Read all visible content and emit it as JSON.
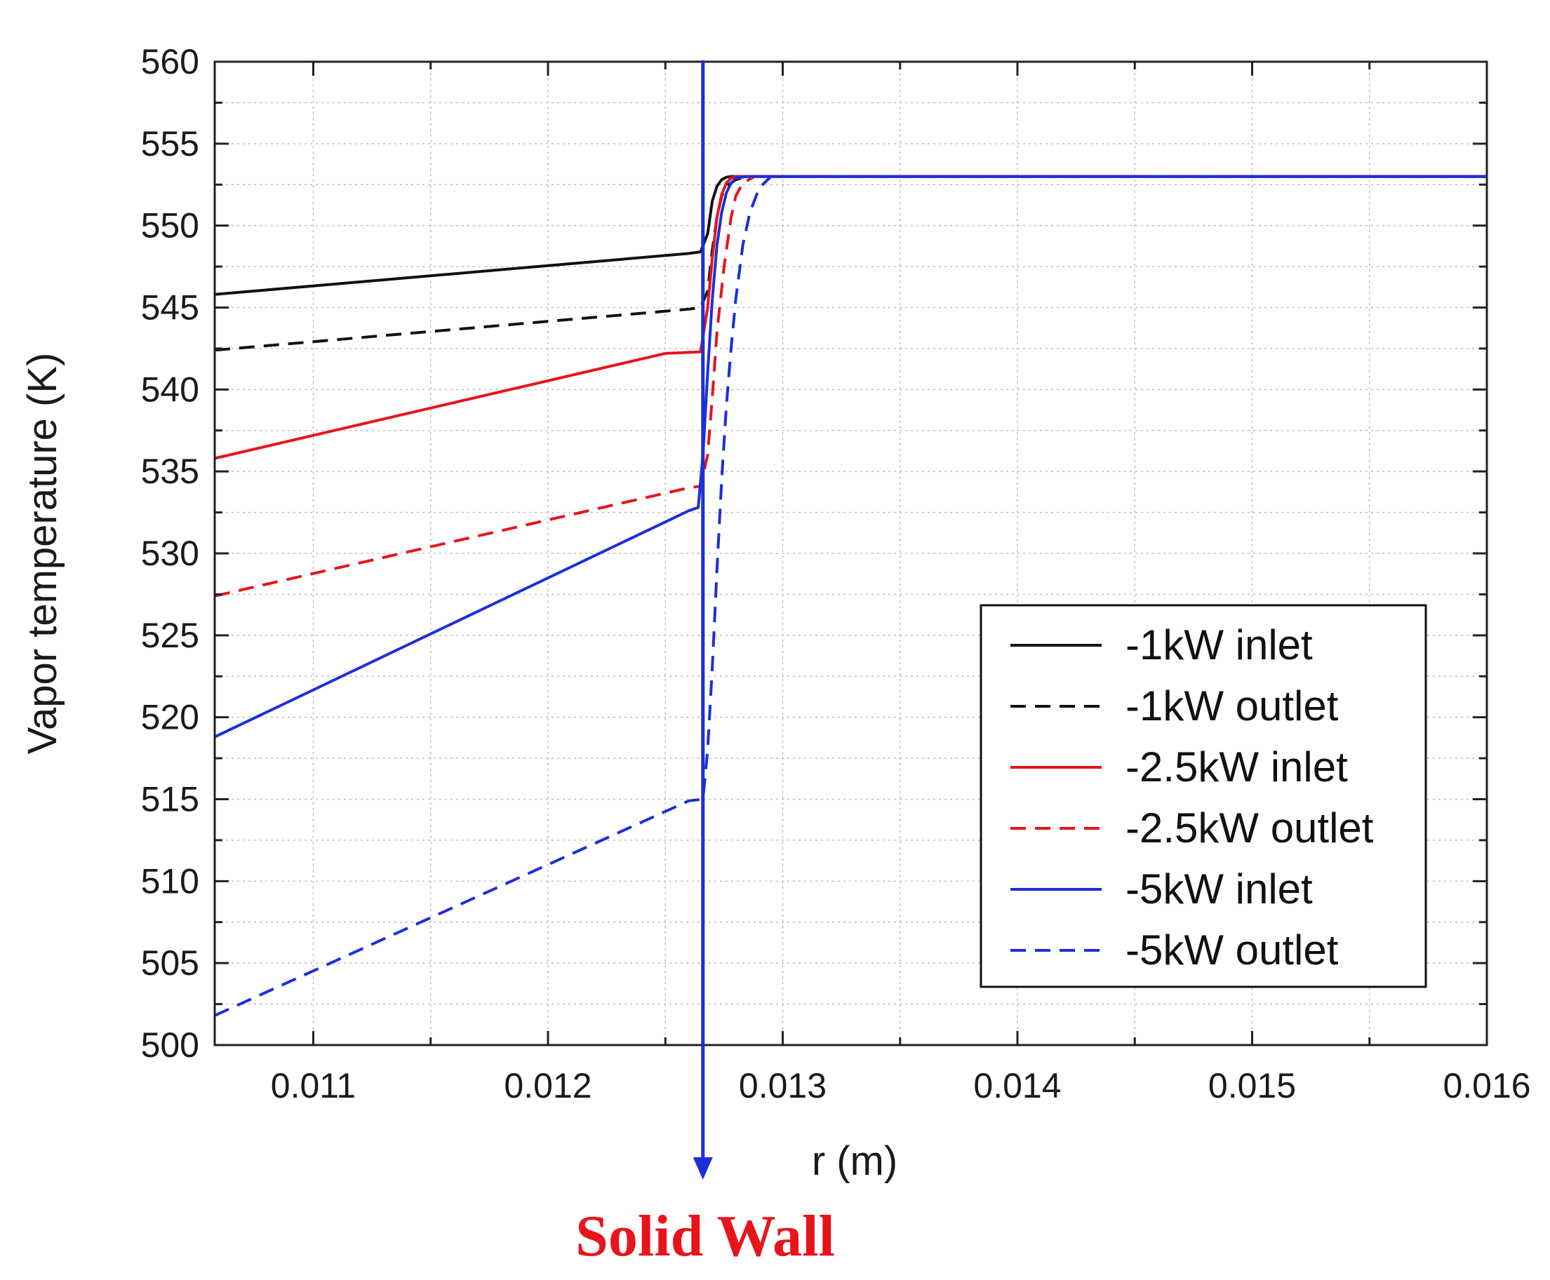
{
  "chart_data": {
    "type": "line",
    "title": "",
    "xlabel": "r (m)",
    "ylabel": "Vapor temperature (K)",
    "xlim": [
      0.01058,
      0.016
    ],
    "ylim": [
      500,
      560
    ],
    "x_ticks": [
      0.011,
      0.012,
      0.013,
      0.014,
      0.015,
      0.016
    ],
    "x_tick_labels": [
      "0.011",
      "0.012",
      "0.013",
      "0.014",
      "0.015",
      "0.016"
    ],
    "y_ticks": [
      500,
      505,
      510,
      515,
      520,
      525,
      530,
      535,
      540,
      545,
      550,
      555,
      560
    ],
    "y_tick_labels": [
      "500",
      "505",
      "510",
      "515",
      "520",
      "525",
      "530",
      "535",
      "540",
      "545",
      "550",
      "555",
      "560"
    ],
    "grid": true,
    "legend_position": "bottom-right",
    "series": [
      {
        "name": "-1kW inlet",
        "color": "#111111",
        "dash": "solid",
        "x": [
          0.01058,
          0.0126,
          0.01265,
          0.01268,
          0.0127,
          0.01272,
          0.01274,
          0.01276,
          0.01278,
          0.0128,
          0.016
        ],
        "y": [
          545.8,
          548.3,
          548.4,
          549.5,
          551.5,
          552.4,
          552.8,
          552.95,
          553.0,
          553.0,
          553.0
        ]
      },
      {
        "name": "-1kW outlet",
        "color": "#111111",
        "dash": "dashed",
        "x": [
          0.01058,
          0.0126,
          0.01265,
          0.01268,
          0.0127,
          0.01272,
          0.01274,
          0.01276,
          0.0128,
          0.01285,
          0.016
        ],
        "y": [
          542.4,
          544.9,
          545.0,
          546.0,
          548.5,
          550.5,
          551.8,
          552.4,
          552.8,
          553.0,
          553.0
        ]
      },
      {
        "name": "-2.5kW inlet",
        "color": "#e8141b",
        "dash": "solid",
        "x": [
          0.01058,
          0.0125,
          0.01265,
          0.01268,
          0.0127,
          0.01272,
          0.01274,
          0.01276,
          0.01278,
          0.0128,
          0.01285,
          0.016
        ],
        "y": [
          535.8,
          542.2,
          542.3,
          545.0,
          548.0,
          550.5,
          551.9,
          552.6,
          552.9,
          553.0,
          553.0,
          553.0
        ]
      },
      {
        "name": "-2.5kW outlet",
        "color": "#e8141b",
        "dash": "dashed",
        "x": [
          0.01058,
          0.0126,
          0.01265,
          0.01268,
          0.0127,
          0.01272,
          0.01275,
          0.01278,
          0.0128,
          0.01283,
          0.01288,
          0.016
        ],
        "y": [
          527.4,
          534.0,
          534.1,
          536.0,
          539.5,
          543.5,
          547.5,
          550.5,
          551.8,
          552.6,
          553.0,
          553.0
        ]
      },
      {
        "name": "-5kW inlet",
        "color": "#1c2fd8",
        "dash": "solid",
        "x": [
          0.01058,
          0.0126,
          0.01264,
          0.01266,
          0.01268,
          0.0127,
          0.01272,
          0.01274,
          0.01276,
          0.01278,
          0.0128,
          0.01285,
          0.016
        ],
        "y": [
          518.8,
          532.6,
          532.8,
          536.0,
          541.0,
          545.5,
          548.8,
          550.8,
          552.0,
          552.6,
          552.9,
          553.0,
          553.0
        ]
      },
      {
        "name": "-5kW outlet",
        "color": "#1c2fd8",
        "dash": "dashed",
        "x": [
          0.01058,
          0.0126,
          0.01266,
          0.01268,
          0.0127,
          0.01272,
          0.01274,
          0.01276,
          0.01278,
          0.0128,
          0.01283,
          0.01286,
          0.0129,
          0.01295,
          0.016
        ],
        "y": [
          501.8,
          514.9,
          515.0,
          518.0,
          523.0,
          529.0,
          534.5,
          539.0,
          542.5,
          545.5,
          548.8,
          550.8,
          552.3,
          553.0,
          553.0
        ]
      }
    ],
    "annotation": {
      "label": "Solid Wall",
      "x": 0.01266,
      "color": "#1c2fd8",
      "label_color": "#e8141b"
    }
  }
}
